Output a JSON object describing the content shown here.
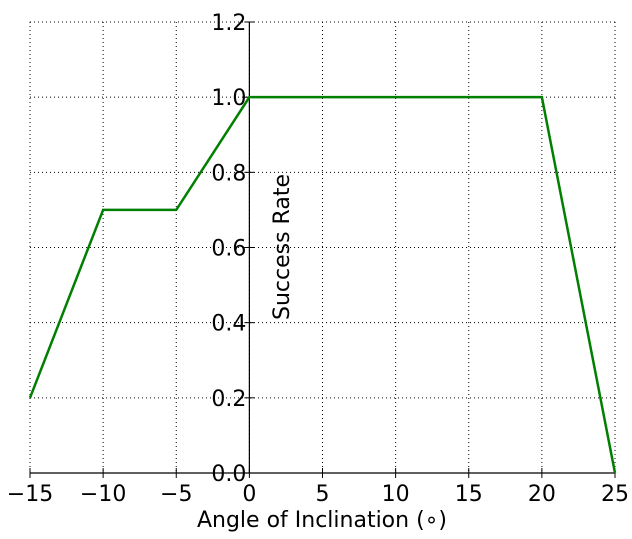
{
  "chart_data": {
    "type": "line",
    "title": "",
    "xlabel": "Angle of Inclination (∘)",
    "ylabel": "Success Rate",
    "xlim": [
      -15,
      25
    ],
    "ylim": [
      0.0,
      1.2
    ],
    "grid": true,
    "x_ticks": [
      -15,
      -10,
      -5,
      0,
      5,
      10,
      15,
      20,
      25
    ],
    "x_tick_labels": [
      "−15",
      "−10",
      "−5",
      "0",
      "5",
      "10",
      "15",
      "20",
      "25"
    ],
    "y_ticks": [
      0.0,
      0.2,
      0.4,
      0.6,
      0.8,
      1.0,
      1.2
    ],
    "y_tick_labels": [
      "0.0",
      "0.2",
      "0.4",
      "0.6",
      "0.8",
      "1.0",
      "1.2"
    ],
    "series": [
      {
        "color": "#007f00",
        "x": [
          -15,
          -10,
          -5,
          0,
          20,
          25
        ],
        "y": [
          0.2,
          0.7,
          0.7,
          1.0,
          1.0,
          0.0
        ]
      }
    ]
  }
}
